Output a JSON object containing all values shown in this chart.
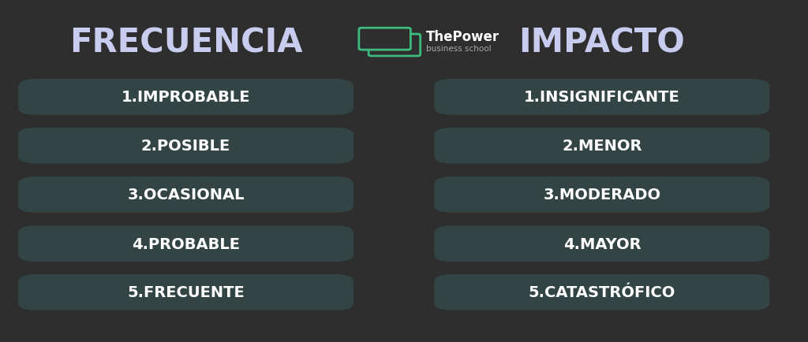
{
  "background_color": "#2e2e2e",
  "box_color": "#334444",
  "title_color": "#c8ccee",
  "text_color": "#ffffff",
  "title_left": "FRECUENCIA",
  "title_right": "IMPACTO",
  "logo_text_main": "ThePower",
  "logo_text_sub": "business school",
  "logo_color": "#3dba7e",
  "left_items": [
    "1.IMPROBABLE",
    "2.POSIBLE",
    "3.OCASIONAL",
    "4.PROBABLE",
    "5.FRECUENTE"
  ],
  "right_items": [
    "1.INSIGNIFICANTE",
    "2.MENOR",
    "3.MODERADO",
    "4.MAYOR",
    "5.CATASTRÓFICO"
  ],
  "fig_width": 10.24,
  "fig_height": 4.35,
  "dpi": 100
}
